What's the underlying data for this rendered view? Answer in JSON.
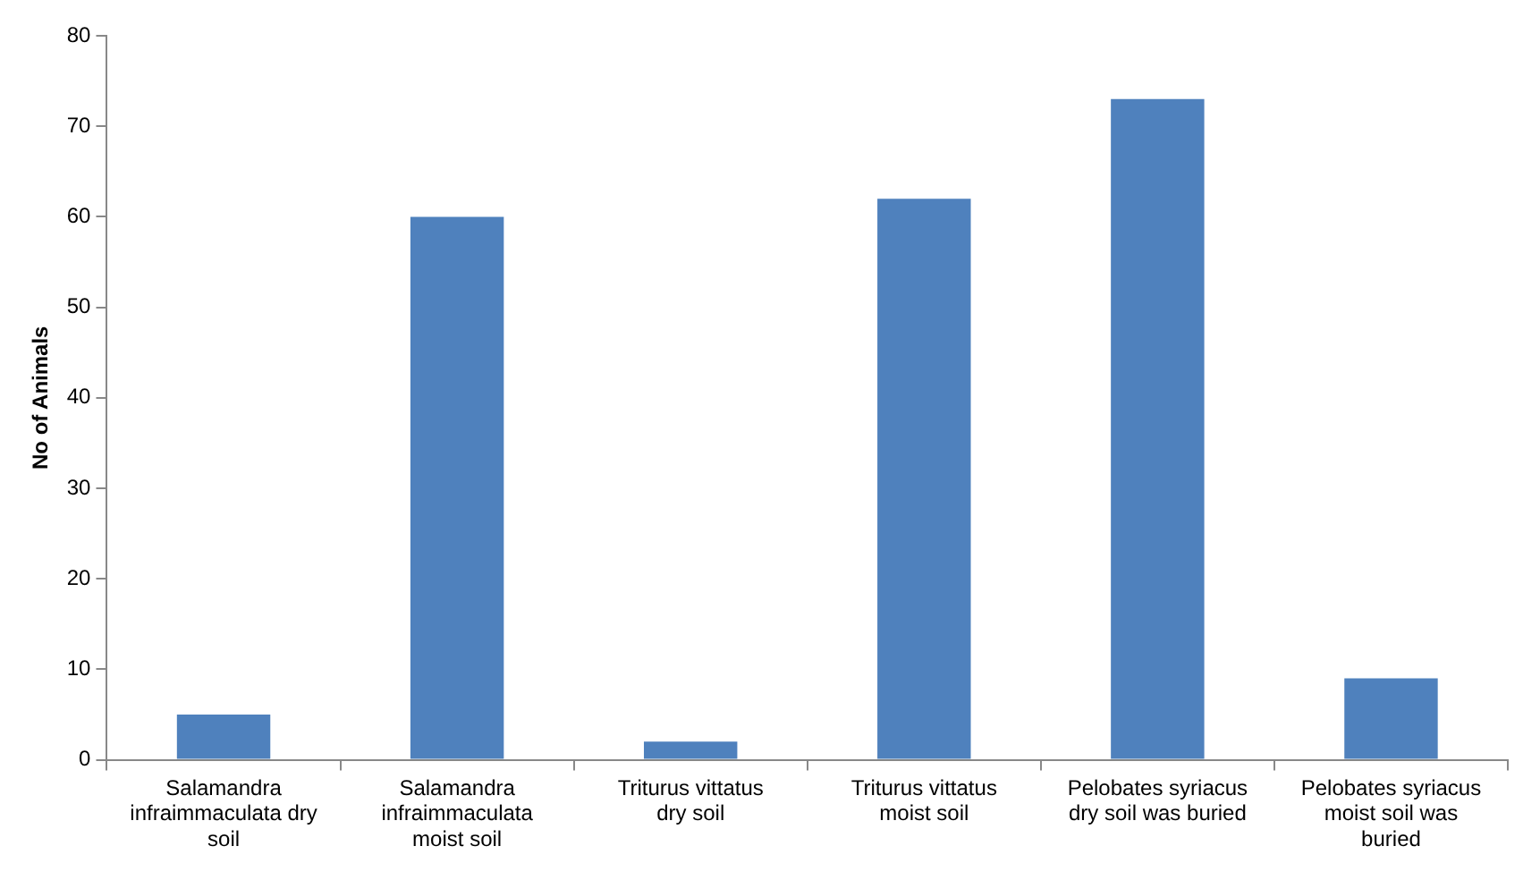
{
  "chart_data": {
    "type": "bar",
    "ylabel": "No of Animals",
    "categories": [
      "Salamandra infraimmaculata dry soil",
      "Salamandra infraimmaculata moist soil",
      "Triturus vittatus dry soil",
      "Triturus vittatus moist soil",
      "Pelobates syriacus dry soil was buried",
      "Pelobates syriacus moist soil was buried"
    ],
    "values": [
      5,
      60,
      2,
      62,
      73,
      9
    ],
    "color": "#4f81bd",
    "ylim": [
      0,
      80
    ],
    "yticks": [
      0,
      10,
      20,
      30,
      40,
      50,
      60,
      70,
      80
    ],
    "grid": false,
    "legend": false
  }
}
